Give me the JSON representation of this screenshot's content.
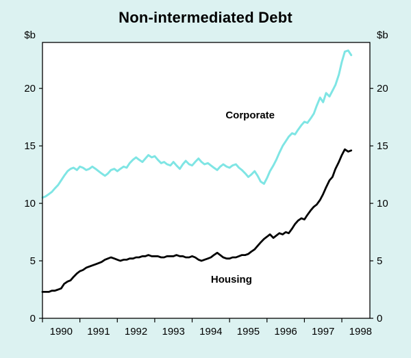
{
  "chart_data": {
    "type": "line",
    "title": "Non-intermediated Debt",
    "unit_label": "$b",
    "xlim": [
      1989.5,
      1998.25
    ],
    "ylim": [
      0,
      24
    ],
    "y_ticks": [
      0,
      5,
      10,
      15,
      20
    ],
    "x_tick_years": [
      1990,
      1991,
      1992,
      1993,
      1994,
      1995,
      1996,
      1997,
      1998
    ],
    "x_boundary_ticks": [
      1989.5,
      1990.5,
      1991.5,
      1992.5,
      1993.5,
      1994.5,
      1995.5,
      1996.5,
      1997.5
    ],
    "grid": false,
    "background": "#dcf2f1",
    "plot_background": "#ffffff",
    "border_color": "#000000",
    "series": [
      {
        "name": "Corporate",
        "color": "#7fe5e4",
        "width": 3,
        "label_pos": [
          1995.05,
          17.4
        ],
        "points": [
          [
            1989.5,
            10.5
          ],
          [
            1989.58,
            10.6
          ],
          [
            1989.67,
            10.8
          ],
          [
            1989.75,
            11.0
          ],
          [
            1989.83,
            11.3
          ],
          [
            1989.92,
            11.6
          ],
          [
            1990.0,
            12.0
          ],
          [
            1990.08,
            12.4
          ],
          [
            1990.17,
            12.8
          ],
          [
            1990.25,
            13.0
          ],
          [
            1990.33,
            13.1
          ],
          [
            1990.42,
            12.9
          ],
          [
            1990.5,
            13.2
          ],
          [
            1990.58,
            13.1
          ],
          [
            1990.67,
            12.9
          ],
          [
            1990.75,
            13.0
          ],
          [
            1990.83,
            13.2
          ],
          [
            1990.92,
            13.0
          ],
          [
            1991.0,
            12.8
          ],
          [
            1991.08,
            12.6
          ],
          [
            1991.17,
            12.4
          ],
          [
            1991.25,
            12.6
          ],
          [
            1991.33,
            12.9
          ],
          [
            1991.42,
            13.0
          ],
          [
            1991.5,
            12.8
          ],
          [
            1991.58,
            13.0
          ],
          [
            1991.67,
            13.2
          ],
          [
            1991.75,
            13.1
          ],
          [
            1991.83,
            13.5
          ],
          [
            1991.92,
            13.8
          ],
          [
            1992.0,
            14.0
          ],
          [
            1992.08,
            13.8
          ],
          [
            1992.17,
            13.6
          ],
          [
            1992.25,
            13.9
          ],
          [
            1992.33,
            14.2
          ],
          [
            1992.42,
            14.0
          ],
          [
            1992.5,
            14.1
          ],
          [
            1992.58,
            13.8
          ],
          [
            1992.67,
            13.5
          ],
          [
            1992.75,
            13.6
          ],
          [
            1992.83,
            13.4
          ],
          [
            1992.92,
            13.3
          ],
          [
            1993.0,
            13.6
          ],
          [
            1993.08,
            13.3
          ],
          [
            1993.17,
            13.0
          ],
          [
            1993.25,
            13.4
          ],
          [
            1993.33,
            13.7
          ],
          [
            1993.42,
            13.4
          ],
          [
            1993.5,
            13.3
          ],
          [
            1993.58,
            13.6
          ],
          [
            1993.67,
            13.9
          ],
          [
            1993.75,
            13.6
          ],
          [
            1993.83,
            13.4
          ],
          [
            1993.92,
            13.5
          ],
          [
            1994.0,
            13.3
          ],
          [
            1994.08,
            13.1
          ],
          [
            1994.17,
            12.9
          ],
          [
            1994.25,
            13.2
          ],
          [
            1994.33,
            13.4
          ],
          [
            1994.42,
            13.2
          ],
          [
            1994.5,
            13.1
          ],
          [
            1994.58,
            13.3
          ],
          [
            1994.67,
            13.4
          ],
          [
            1994.75,
            13.1
          ],
          [
            1994.83,
            12.9
          ],
          [
            1994.92,
            12.6
          ],
          [
            1995.0,
            12.3
          ],
          [
            1995.08,
            12.5
          ],
          [
            1995.17,
            12.8
          ],
          [
            1995.25,
            12.4
          ],
          [
            1995.33,
            11.9
          ],
          [
            1995.42,
            11.7
          ],
          [
            1995.5,
            12.2
          ],
          [
            1995.58,
            12.8
          ],
          [
            1995.67,
            13.3
          ],
          [
            1995.75,
            13.8
          ],
          [
            1995.83,
            14.4
          ],
          [
            1995.92,
            15.0
          ],
          [
            1996.0,
            15.4
          ],
          [
            1996.08,
            15.8
          ],
          [
            1996.17,
            16.1
          ],
          [
            1996.25,
            16.0
          ],
          [
            1996.33,
            16.4
          ],
          [
            1996.42,
            16.8
          ],
          [
            1996.5,
            17.1
          ],
          [
            1996.58,
            17.0
          ],
          [
            1996.67,
            17.4
          ],
          [
            1996.75,
            17.8
          ],
          [
            1996.83,
            18.5
          ],
          [
            1996.92,
            19.2
          ],
          [
            1997.0,
            18.8
          ],
          [
            1997.08,
            19.6
          ],
          [
            1997.17,
            19.3
          ],
          [
            1997.25,
            19.8
          ],
          [
            1997.33,
            20.3
          ],
          [
            1997.42,
            21.2
          ],
          [
            1997.5,
            22.3
          ],
          [
            1997.58,
            23.2
          ],
          [
            1997.67,
            23.3
          ],
          [
            1997.75,
            22.9
          ]
        ]
      },
      {
        "name": "Housing",
        "color": "#000000",
        "width": 2.8,
        "label_pos": [
          1994.55,
          3.1
        ],
        "points": [
          [
            1989.5,
            2.3
          ],
          [
            1989.58,
            2.3
          ],
          [
            1989.67,
            2.3
          ],
          [
            1989.75,
            2.4
          ],
          [
            1989.83,
            2.4
          ],
          [
            1989.92,
            2.5
          ],
          [
            1990.0,
            2.6
          ],
          [
            1990.08,
            3.0
          ],
          [
            1990.17,
            3.2
          ],
          [
            1990.25,
            3.3
          ],
          [
            1990.33,
            3.6
          ],
          [
            1990.42,
            3.9
          ],
          [
            1990.5,
            4.1
          ],
          [
            1990.58,
            4.2
          ],
          [
            1990.67,
            4.4
          ],
          [
            1990.75,
            4.5
          ],
          [
            1990.83,
            4.6
          ],
          [
            1990.92,
            4.7
          ],
          [
            1991.0,
            4.8
          ],
          [
            1991.08,
            4.9
          ],
          [
            1991.17,
            5.1
          ],
          [
            1991.25,
            5.2
          ],
          [
            1991.33,
            5.3
          ],
          [
            1991.42,
            5.2
          ],
          [
            1991.5,
            5.1
          ],
          [
            1991.58,
            5.0
          ],
          [
            1991.67,
            5.1
          ],
          [
            1991.75,
            5.1
          ],
          [
            1991.83,
            5.2
          ],
          [
            1991.92,
            5.2
          ],
          [
            1992.0,
            5.3
          ],
          [
            1992.08,
            5.3
          ],
          [
            1992.17,
            5.4
          ],
          [
            1992.25,
            5.4
          ],
          [
            1992.33,
            5.5
          ],
          [
            1992.42,
            5.4
          ],
          [
            1992.5,
            5.4
          ],
          [
            1992.58,
            5.4
          ],
          [
            1992.67,
            5.3
          ],
          [
            1992.75,
            5.3
          ],
          [
            1992.83,
            5.4
          ],
          [
            1992.92,
            5.4
          ],
          [
            1993.0,
            5.4
          ],
          [
            1993.08,
            5.5
          ],
          [
            1993.17,
            5.4
          ],
          [
            1993.25,
            5.4
          ],
          [
            1993.33,
            5.3
          ],
          [
            1993.42,
            5.3
          ],
          [
            1993.5,
            5.4
          ],
          [
            1993.58,
            5.3
          ],
          [
            1993.67,
            5.1
          ],
          [
            1993.75,
            5.0
          ],
          [
            1993.83,
            5.1
          ],
          [
            1993.92,
            5.2
          ],
          [
            1994.0,
            5.3
          ],
          [
            1994.08,
            5.5
          ],
          [
            1994.17,
            5.7
          ],
          [
            1994.25,
            5.5
          ],
          [
            1994.33,
            5.3
          ],
          [
            1994.42,
            5.2
          ],
          [
            1994.5,
            5.2
          ],
          [
            1994.58,
            5.3
          ],
          [
            1994.67,
            5.3
          ],
          [
            1994.75,
            5.4
          ],
          [
            1994.83,
            5.5
          ],
          [
            1994.92,
            5.5
          ],
          [
            1995.0,
            5.6
          ],
          [
            1995.08,
            5.8
          ],
          [
            1995.17,
            6.0
          ],
          [
            1995.25,
            6.3
          ],
          [
            1995.33,
            6.6
          ],
          [
            1995.42,
            6.9
          ],
          [
            1995.5,
            7.1
          ],
          [
            1995.58,
            7.3
          ],
          [
            1995.67,
            7.0
          ],
          [
            1995.75,
            7.2
          ],
          [
            1995.83,
            7.4
          ],
          [
            1995.92,
            7.3
          ],
          [
            1996.0,
            7.5
          ],
          [
            1996.08,
            7.4
          ],
          [
            1996.17,
            7.8
          ],
          [
            1996.25,
            8.2
          ],
          [
            1996.33,
            8.5
          ],
          [
            1996.42,
            8.7
          ],
          [
            1996.5,
            8.6
          ],
          [
            1996.58,
            9.0
          ],
          [
            1996.67,
            9.4
          ],
          [
            1996.75,
            9.7
          ],
          [
            1996.83,
            9.9
          ],
          [
            1996.92,
            10.3
          ],
          [
            1997.0,
            10.8
          ],
          [
            1997.08,
            11.4
          ],
          [
            1997.17,
            12.0
          ],
          [
            1997.25,
            12.3
          ],
          [
            1997.33,
            13.0
          ],
          [
            1997.42,
            13.6
          ],
          [
            1997.5,
            14.2
          ],
          [
            1997.58,
            14.7
          ],
          [
            1997.67,
            14.5
          ],
          [
            1997.75,
            14.6
          ]
        ]
      }
    ]
  }
}
